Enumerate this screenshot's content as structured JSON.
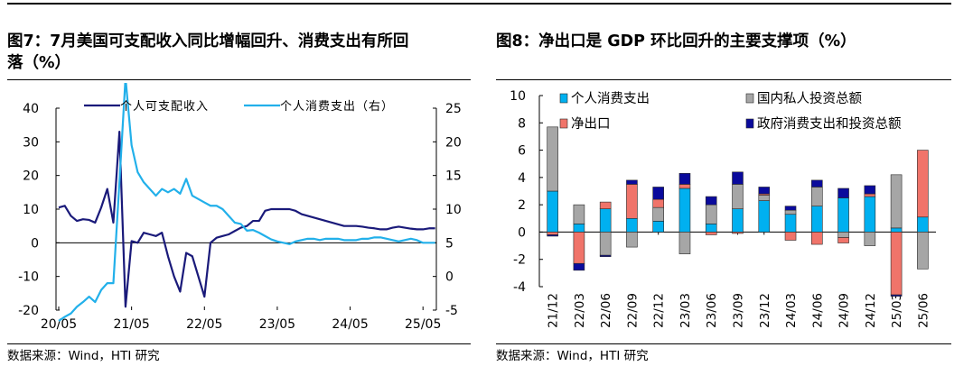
{
  "left": {
    "title_line1": "图7：7月美国可支配收入同比增幅回升、消费支出有所回",
    "title_line2": "落（%）",
    "source": "数据来源：Wind，HTI 研究"
  },
  "right": {
    "title": "图8：净出口是 GDP 环比回升的主要支撑项（%）",
    "source": "数据来源：Wind，HTI 研究"
  },
  "chart_data": [
    {
      "type": "line",
      "legend_placement": "top",
      "grid": false,
      "x_ticks": [
        "20/05",
        "21/05",
        "22/05",
        "23/05",
        "24/05",
        "25/05"
      ],
      "y_left": {
        "range": [
          -20,
          40
        ],
        "ticks": [
          "-20",
          "-10",
          "0",
          "10",
          "20",
          "30",
          "40"
        ]
      },
      "y_right": {
        "range": [
          -5,
          25
        ],
        "ticks": [
          "-5",
          "0",
          "5",
          "10",
          "15",
          "20",
          "25"
        ]
      },
      "series": [
        {
          "name": "个人可支配收入",
          "axis": "left",
          "color": "#1a1a7a",
          "x": [
            "2020-05",
            "2020-06",
            "2020-07",
            "2020-08",
            "2020-09",
            "2020-10",
            "2020-11",
            "2020-12",
            "2021-01",
            "2021-02",
            "2021-03",
            "2021-04",
            "2021-05",
            "2021-06",
            "2021-07",
            "2021-08",
            "2021-09",
            "2021-10",
            "2021-11",
            "2021-12",
            "2022-01",
            "2022-02",
            "2022-03",
            "2022-04",
            "2022-05",
            "2022-06",
            "2022-07",
            "2022-08",
            "2022-09",
            "2022-10",
            "2022-11",
            "2022-12",
            "2023-01",
            "2023-02",
            "2023-03",
            "2023-04",
            "2023-05",
            "2023-06",
            "2023-07",
            "2023-08",
            "2023-09",
            "2023-10",
            "2023-11",
            "2023-12",
            "2024-01",
            "2024-02",
            "2024-03",
            "2024-04",
            "2024-05",
            "2024-06",
            "2024-07",
            "2024-08",
            "2024-09",
            "2024-10",
            "2024-11",
            "2024-12",
            "2025-01",
            "2025-02",
            "2025-03",
            "2025-04",
            "2025-05",
            "2025-06",
            "2025-07"
          ],
          "values": [
            10.5,
            11,
            8,
            6.5,
            7,
            6.8,
            6,
            10.5,
            16,
            6,
            33,
            -19,
            0.5,
            0,
            3,
            2.5,
            2,
            3,
            -4,
            -10,
            -14.5,
            -3,
            -4,
            -10,
            -16,
            0,
            1.5,
            2,
            2.5,
            3.5,
            4.5,
            5,
            6.5,
            6.5,
            9.5,
            10,
            10,
            10,
            10,
            9.5,
            8.5,
            8,
            7.5,
            7,
            6.5,
            6,
            5.5,
            5,
            5,
            5,
            4.8,
            4.5,
            4.3,
            4,
            4,
            4.5,
            4.8,
            4.5,
            4.2,
            4,
            4,
            4.3,
            4.3
          ]
        },
        {
          "name": "个人消费支出（右）",
          "axis": "right",
          "color": "#22b0ea",
          "x": [
            "2020-05",
            "2020-06",
            "2020-07",
            "2020-08",
            "2020-09",
            "2020-10",
            "2020-11",
            "2020-12",
            "2021-01",
            "2021-02",
            "2021-03",
            "2021-04",
            "2021-05",
            "2021-06",
            "2021-07",
            "2021-08",
            "2021-09",
            "2021-10",
            "2021-11",
            "2021-12",
            "2022-01",
            "2022-02",
            "2022-03",
            "2022-04",
            "2022-05",
            "2022-06",
            "2022-07",
            "2022-08",
            "2022-09",
            "2022-10",
            "2022-11",
            "2022-12",
            "2023-01",
            "2023-02",
            "2023-03",
            "2023-04",
            "2023-05",
            "2023-06",
            "2023-07",
            "2023-08",
            "2023-09",
            "2023-10",
            "2023-11",
            "2023-12",
            "2024-01",
            "2024-02",
            "2024-03",
            "2024-04",
            "2024-05",
            "2024-06",
            "2024-07",
            "2024-08",
            "2024-09",
            "2024-10",
            "2024-11",
            "2024-12",
            "2025-01",
            "2025-02",
            "2025-03",
            "2025-04",
            "2025-05",
            "2025-06",
            "2025-07"
          ],
          "values": [
            -6.6,
            -6,
            -5.5,
            -4.5,
            -3.8,
            -3,
            -3.8,
            -2,
            -1,
            -1,
            14,
            29.5,
            19.5,
            15.5,
            14,
            13,
            12,
            13,
            12.5,
            13,
            12.3,
            14.5,
            12,
            11.5,
            11,
            10.5,
            10.5,
            10,
            9,
            8,
            7.8,
            6.8,
            6.9,
            6.5,
            6,
            5.5,
            5.2,
            5,
            4.8,
            5.2,
            5.4,
            5.6,
            5.6,
            5.4,
            5.6,
            5.6,
            5.6,
            5.4,
            5.4,
            5.4,
            5.6,
            5.6,
            5.8,
            5.8,
            5.6,
            5.4,
            5.2,
            5.4,
            5.6,
            5.4,
            5,
            5,
            5
          ]
        }
      ]
    },
    {
      "type": "bar",
      "stacked": true,
      "legend_placement": "top",
      "grid": false,
      "categories": [
        "21/12",
        "22/03",
        "22/06",
        "22/09",
        "22/12",
        "23/03",
        "23/06",
        "23/09",
        "23/12",
        "24/03",
        "24/06",
        "24/09",
        "24/12",
        "25/03",
        "25/06"
      ],
      "y_range": [
        -4,
        10
      ],
      "y_ticks": [
        "-4",
        "-2",
        "0",
        "2",
        "4",
        "6",
        "8",
        "10"
      ],
      "series": [
        {
          "name": "个人消费支出",
          "color": "#00b0f0",
          "values": [
            3,
            0.6,
            1.7,
            1,
            0.8,
            3.2,
            0.6,
            1.7,
            2.3,
            1.3,
            1.9,
            2.5,
            2.6,
            0.3,
            1.1
          ]
        },
        {
          "name": "国内私人投资总额",
          "color": "#a6a6a6",
          "values": [
            4.7,
            1.4,
            -1.7,
            -1.1,
            1,
            -1.6,
            1.4,
            1.8,
            0.4,
            0.3,
            1.4,
            -0.4,
            -1,
            3.9,
            -2.7
          ]
        },
        {
          "name": "净出口",
          "color": "#f0746a",
          "values": [
            -0.2,
            -2.3,
            0.5,
            2.5,
            0.6,
            0.3,
            -0.2,
            -0.1,
            0.1,
            -0.6,
            -0.9,
            -0.4,
            0.2,
            -4.6,
            4.9
          ]
        },
        {
          "name": "政府消费支出和投资总额",
          "color": "#0a0a9c",
          "values": [
            -0.1,
            -0.5,
            -0.1,
            0.3,
            0.9,
            0.8,
            0.6,
            0.9,
            0.5,
            0.3,
            0.5,
            0.7,
            0.6,
            -0.1,
            0
          ]
        }
      ]
    }
  ]
}
